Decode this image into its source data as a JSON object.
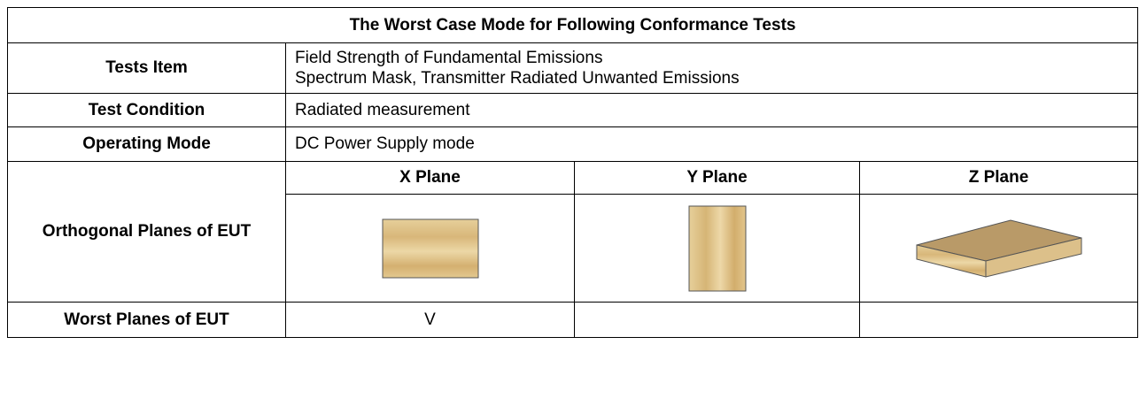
{
  "table": {
    "title": "The Worst Case Mode for Following Conformance Tests",
    "tests_item": {
      "label": "Tests Item",
      "lines": [
        "Field Strength of Fundamental Emissions",
        "Spectrum Mask, Transmitter Radiated Unwanted Emissions"
      ]
    },
    "test_condition": {
      "label": "Test Condition",
      "value": "Radiated measurement"
    },
    "operating_mode": {
      "label": "Operating Mode",
      "value": "DC Power Supply mode"
    },
    "planes": {
      "label": "Orthogonal Planes of EUT",
      "headers": [
        "X Plane",
        "Y Plane",
        "Z Plane"
      ]
    },
    "worst": {
      "label": "Worst Planes of EUT",
      "marks": [
        "V",
        null,
        null
      ]
    }
  }
}
